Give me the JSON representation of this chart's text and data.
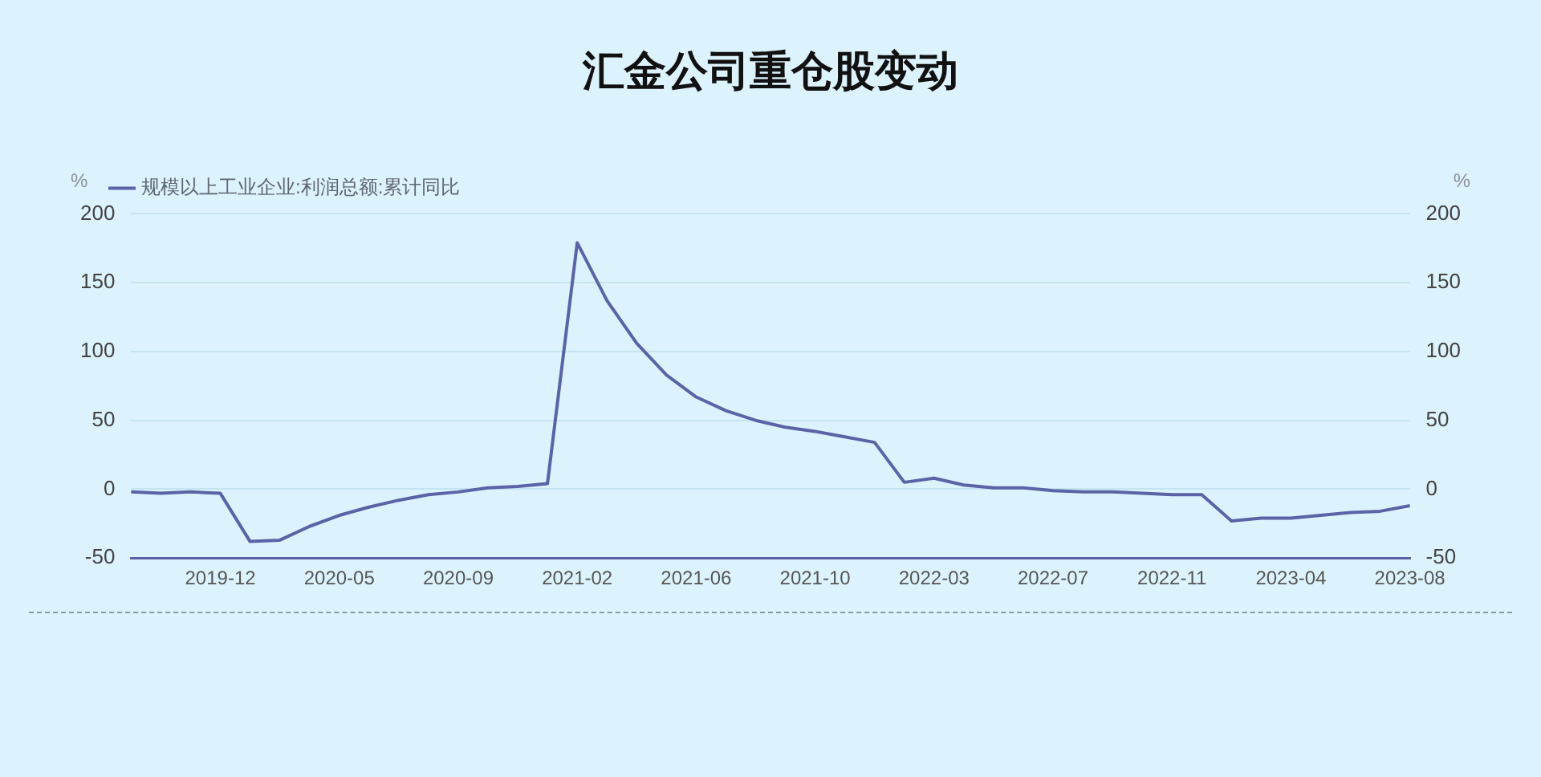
{
  "chart_data": {
    "type": "line",
    "title": "汇金公司重仓股变动",
    "categories": [
      null,
      null,
      null,
      "2019-12",
      null,
      null,
      null,
      "2020-05",
      null,
      null,
      null,
      "2020-09",
      null,
      null,
      null,
      "2021-02",
      null,
      null,
      null,
      "2021-06",
      null,
      null,
      null,
      "2021-10",
      null,
      null,
      null,
      "2022-03",
      null,
      null,
      null,
      "2022-07",
      null,
      null,
      null,
      "2022-11",
      null,
      null,
      null,
      "2023-04",
      null,
      null,
      null,
      "2023-08"
    ],
    "series": [
      {
        "name": "规模以上工业企业:利润总额:累计同比",
        "color": "#5a63a6",
        "values": [
          -2,
          -3,
          -2,
          -3,
          -38,
          -37,
          -27,
          -19,
          -13,
          -8,
          -4,
          -2,
          1,
          2,
          4,
          179,
          137,
          106,
          83,
          67,
          57,
          50,
          45,
          42,
          38,
          34,
          5,
          8,
          3,
          1,
          1,
          -1,
          -2,
          -2,
          -3,
          -4,
          -4,
          -23,
          -21,
          -21,
          -19,
          -17,
          -16,
          -12
        ]
      }
    ],
    "ylabel": "%",
    "y2label": "%",
    "ylim": [
      -50,
      200
    ],
    "yticks": [
      -50,
      0,
      50,
      100,
      150,
      200
    ],
    "y2lim": [
      -50,
      200
    ],
    "y2ticks": [
      -50,
      0,
      50,
      100,
      150,
      200
    ],
    "grid": "y",
    "legend": "top left",
    "marker": "none",
    "line_style": "solid"
  }
}
